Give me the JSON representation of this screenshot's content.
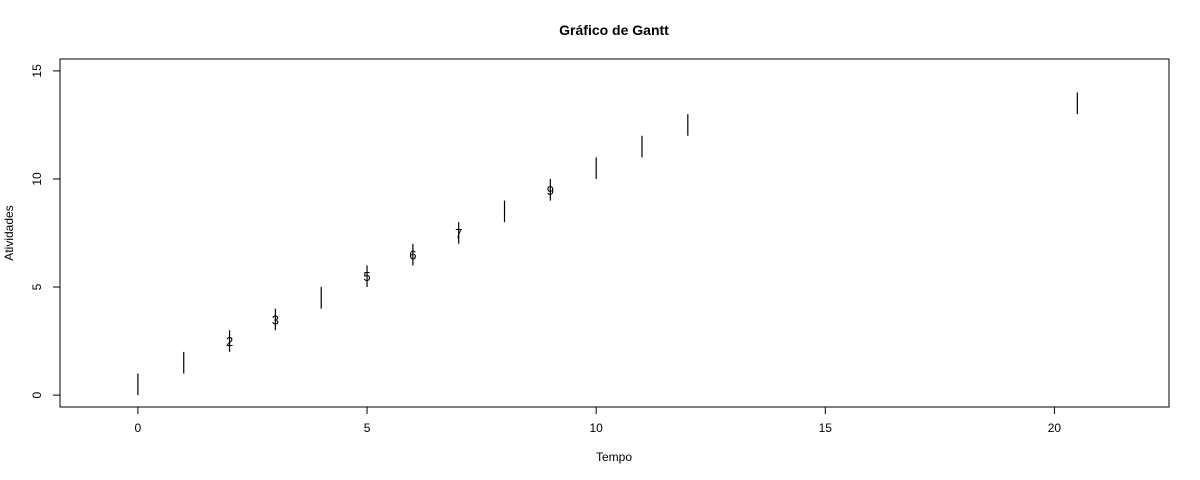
{
  "chart_data": {
    "type": "gantt",
    "title": "Gráfico de Gantt",
    "xlabel": "Tempo",
    "ylabel": "Atividades",
    "xlim": [
      -1.7,
      22.5
    ],
    "ylim": [
      -0.55,
      15.55
    ],
    "x_ticks": [
      0,
      5,
      10,
      15,
      20
    ],
    "y_ticks": [
      0,
      5,
      10,
      15
    ],
    "grid": false,
    "bar_color": "#000000",
    "tasks": [
      {
        "id": 1,
        "start": 0,
        "end": 0,
        "y0": 0,
        "y1": 1,
        "label": ""
      },
      {
        "id": 2,
        "start": 1,
        "end": 1,
        "y0": 1,
        "y1": 2,
        "label": ""
      },
      {
        "id": 3,
        "start": 2,
        "end": 2,
        "y0": 2,
        "y1": 3,
        "label": "2"
      },
      {
        "id": 4,
        "start": 3,
        "end": 3,
        "y0": 3,
        "y1": 4,
        "label": "3"
      },
      {
        "id": 5,
        "start": 4,
        "end": 4,
        "y0": 4,
        "y1": 5,
        "label": ""
      },
      {
        "id": 6,
        "start": 5,
        "end": 5,
        "y0": 5,
        "y1": 6,
        "label": "5"
      },
      {
        "id": 7,
        "start": 6,
        "end": 6,
        "y0": 6,
        "y1": 7,
        "label": "6"
      },
      {
        "id": 8,
        "start": 7,
        "end": 7,
        "y0": 7,
        "y1": 8,
        "label": "7"
      },
      {
        "id": 9,
        "start": 8,
        "end": 8,
        "y0": 8,
        "y1": 9,
        "label": ""
      },
      {
        "id": 10,
        "start": 9,
        "end": 9,
        "y0": 9,
        "y1": 10,
        "label": "9"
      },
      {
        "id": 11,
        "start": 10,
        "end": 10,
        "y0": 10,
        "y1": 11,
        "label": ""
      },
      {
        "id": 12,
        "start": 11,
        "end": 11,
        "y0": 11,
        "y1": 12,
        "label": ""
      },
      {
        "id": 13,
        "start": 12,
        "end": 12,
        "y0": 12,
        "y1": 13,
        "label": ""
      },
      {
        "id": 14,
        "start": 20.5,
        "end": 20.5,
        "y0": 13,
        "y1": 14,
        "label": ""
      }
    ]
  }
}
